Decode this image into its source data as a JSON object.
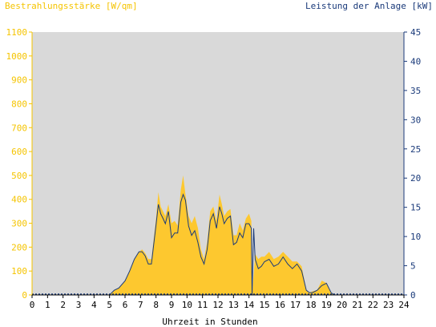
{
  "chart_data": {
    "type": "area",
    "ylabel_left": "Bestrahlungsstärke [W/qm]",
    "ylabel_right": "Leistung der Anlage [kW]",
    "xlabel": "Uhrzeit in Stunden",
    "xlim": [
      0,
      24
    ],
    "ylim_left": [
      0,
      1100
    ],
    "ylim_right": [
      0,
      45
    ],
    "x_ticks": [
      "0",
      "1",
      "2",
      "3",
      "4",
      "5",
      "6",
      "7",
      "8",
      "9",
      "10",
      "11",
      "12",
      "13",
      "14",
      "15",
      "16",
      "17",
      "18",
      "19",
      "20",
      "21",
      "22",
      "23",
      "24"
    ],
    "y_left_ticks": [
      "0",
      "100",
      "200",
      "300",
      "400",
      "500",
      "600",
      "700",
      "800",
      "900",
      "1000",
      "1100"
    ],
    "y_right_ticks": [
      "0",
      "5",
      "10",
      "15",
      "20",
      "25",
      "30",
      "35",
      "40",
      "45"
    ],
    "grid": false,
    "colors": {
      "irradiance": "#fdc82f",
      "power": "#1a3a7a",
      "plot_bg": "#d9d9d9",
      "left_axis": "#f5c400",
      "right_axis": "#1a3a7a"
    },
    "series": [
      {
        "name": "Bestrahlungsstärke [W/qm]",
        "axis": "left",
        "x": [
          0,
          5.0,
          5.3,
          5.6,
          6.0,
          6.3,
          6.6,
          6.9,
          7.1,
          7.3,
          7.5,
          7.7,
          8.0,
          8.15,
          8.3,
          8.45,
          8.6,
          8.8,
          9.0,
          9.2,
          9.4,
          9.6,
          9.75,
          9.9,
          10.1,
          10.3,
          10.5,
          10.7,
          10.9,
          11.1,
          11.3,
          11.5,
          11.7,
          11.9,
          12.1,
          12.25,
          12.4,
          12.6,
          12.8,
          13.0,
          13.2,
          13.4,
          13.6,
          13.8,
          14.0,
          14.15,
          14.2,
          14.4,
          14.6,
          14.8,
          15.0,
          15.3,
          15.6,
          15.9,
          16.2,
          16.5,
          16.8,
          17.1,
          17.4,
          17.7,
          17.9,
          18.1,
          18.4,
          18.7,
          19.0,
          19.3,
          19.5,
          20.0,
          24
        ],
        "values": [
          0,
          0,
          20,
          30,
          60,
          100,
          150,
          180,
          190,
          175,
          150,
          150,
          320,
          430,
          370,
          350,
          330,
          380,
          300,
          310,
          290,
          440,
          500,
          420,
          330,
          300,
          330,
          280,
          190,
          150,
          220,
          350,
          370,
          310,
          420,
          380,
          330,
          350,
          360,
          250,
          250,
          300,
          270,
          320,
          340,
          310,
          0,
          170,
          150,
          160,
          160,
          180,
          150,
          160,
          180,
          160,
          140,
          140,
          120,
          20,
          10,
          15,
          20,
          60,
          50,
          10,
          0,
          0,
          0
        ]
      },
      {
        "name": "Leistung der Anlage [kW]",
        "axis": "right",
        "x": [
          0,
          5.0,
          5.3,
          5.6,
          6.0,
          6.3,
          6.6,
          6.9,
          7.1,
          7.3,
          7.5,
          7.7,
          8.0,
          8.15,
          8.3,
          8.45,
          8.6,
          8.8,
          9.0,
          9.2,
          9.4,
          9.6,
          9.75,
          9.9,
          10.1,
          10.3,
          10.5,
          10.7,
          10.9,
          11.1,
          11.3,
          11.5,
          11.7,
          11.9,
          12.1,
          12.25,
          12.4,
          12.6,
          12.8,
          13.0,
          13.2,
          13.4,
          13.6,
          13.8,
          14.0,
          14.15,
          14.2,
          14.3,
          14.4,
          14.6,
          14.8,
          15.0,
          15.3,
          15.6,
          15.9,
          16.2,
          16.5,
          16.8,
          17.1,
          17.4,
          17.7,
          17.9,
          18.1,
          18.4,
          18.7,
          19.0,
          19.3,
          19.5,
          20.0,
          24
        ],
        "values": [
          0,
          0,
          0.8,
          1.2,
          2.4,
          4.1,
          6.1,
          7.4,
          7.4,
          6.7,
          5.3,
          5.3,
          12.0,
          15.5,
          13.9,
          13.1,
          12.2,
          14.3,
          9.8,
          10.6,
          10.6,
          15.9,
          17.2,
          16.2,
          11.8,
          10.2,
          11.0,
          9.0,
          6.5,
          5.3,
          7.8,
          12.7,
          13.9,
          11.4,
          15.1,
          13.9,
          12.2,
          13.1,
          13.5,
          8.6,
          9.0,
          10.6,
          9.8,
          12.2,
          12.2,
          11.4,
          0,
          11.4,
          6.1,
          4.5,
          4.9,
          5.7,
          6.1,
          4.9,
          5.3,
          6.5,
          5.3,
          4.5,
          5.3,
          4.1,
          0.8,
          0.4,
          0.4,
          0.8,
          1.6,
          2.0,
          0.4,
          0,
          0,
          0
        ]
      }
    ]
  }
}
